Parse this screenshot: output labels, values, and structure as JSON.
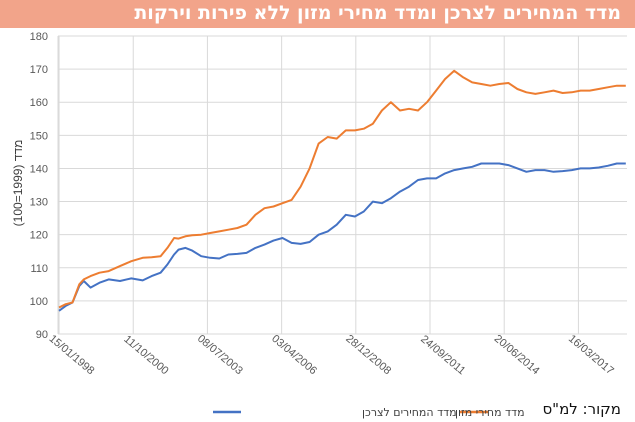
{
  "chart_data": {
    "type": "line",
    "title": "מדד המחירים לצרכן ומדד מחירי מזון ללא פירות וירקות",
    "ylabel": "מדד (1999=100)",
    "xlabel": "",
    "source": "מקור: למ\"ס",
    "ylim": [
      90,
      180
    ],
    "yticks": [
      "90",
      "100",
      "110",
      "120",
      "130",
      "140",
      "150",
      "160",
      "170",
      "180"
    ],
    "x_tick_labels": [
      "15/01/1998",
      "11/10/2000",
      "08/07/2003",
      "03/04/2006",
      "28/12/2008",
      "24/09/2011",
      "20/06/2014",
      "16/03/2017"
    ],
    "grid": true,
    "legend_position": "bottom",
    "colors": {
      "cpi": "#4472c4",
      "food": "#ed7d31"
    },
    "series": [
      {
        "name": "מדד המחירים לצרכן",
        "color": "#4472c4",
        "x": [
          "1998-01",
          "1998-04",
          "1998-07",
          "1998-10",
          "1998-12",
          "1999-03",
          "1999-07",
          "1999-11",
          "2000-04",
          "2000-09",
          "2001-02",
          "2001-06",
          "2001-10",
          "2002-01",
          "2002-04",
          "2002-06",
          "2002-09",
          "2002-12",
          "2003-04",
          "2003-08",
          "2003-12",
          "2004-04",
          "2004-08",
          "2004-12",
          "2005-04",
          "2005-08",
          "2005-12",
          "2006-04",
          "2006-08",
          "2006-12",
          "2007-04",
          "2007-08",
          "2007-12",
          "2008-04",
          "2008-08",
          "2008-12",
          "2009-04",
          "2009-08",
          "2009-12",
          "2010-04",
          "2010-08",
          "2010-12",
          "2011-04",
          "2011-08",
          "2011-12",
          "2012-04",
          "2012-08",
          "2012-12",
          "2013-04",
          "2013-08",
          "2013-12",
          "2014-04",
          "2014-08",
          "2014-12",
          "2015-04",
          "2015-08",
          "2015-12",
          "2016-04",
          "2016-08",
          "2016-12",
          "2017-04",
          "2017-08",
          "2017-12",
          "2018-04",
          "2018-08",
          "2018-12"
        ],
        "values": [
          97,
          98.5,
          99.5,
          104.5,
          106,
          104,
          105.5,
          106.5,
          106,
          106.8,
          106.2,
          107.5,
          108.5,
          111,
          114,
          115.5,
          116,
          115.2,
          113.5,
          113,
          112.8,
          114,
          114.2,
          114.5,
          116,
          117,
          118.2,
          119,
          117.5,
          117.2,
          117.8,
          120,
          121,
          123,
          126,
          125.5,
          127,
          130,
          129.5,
          131,
          133,
          134.5,
          136.5,
          137,
          137,
          138.5,
          139.5,
          140,
          140.5,
          141.5,
          141.5,
          141.5,
          141,
          140,
          139,
          139.5,
          139.5,
          139,
          139.2,
          139.5,
          140,
          140,
          140.3,
          140.8,
          141.5,
          141.5
        ]
      },
      {
        "name": "מדד מחירי מזון",
        "color": "#ed7d31",
        "x": [
          "1998-01",
          "1998-04",
          "1998-07",
          "1998-10",
          "1998-12",
          "1999-03",
          "1999-07",
          "1999-11",
          "2000-04",
          "2000-09",
          "2001-02",
          "2001-06",
          "2001-10",
          "2002-01",
          "2002-04",
          "2002-06",
          "2002-09",
          "2002-12",
          "2003-04",
          "2003-08",
          "2003-12",
          "2004-04",
          "2004-08",
          "2004-12",
          "2005-04",
          "2005-08",
          "2005-12",
          "2006-04",
          "2006-08",
          "2006-12",
          "2007-04",
          "2007-08",
          "2007-12",
          "2008-04",
          "2008-08",
          "2008-12",
          "2009-04",
          "2009-08",
          "2009-12",
          "2010-04",
          "2010-08",
          "2010-12",
          "2011-04",
          "2011-08",
          "2011-12",
          "2012-04",
          "2012-08",
          "2012-12",
          "2013-04",
          "2013-08",
          "2013-12",
          "2014-04",
          "2014-08",
          "2014-12",
          "2015-04",
          "2015-08",
          "2015-12",
          "2016-04",
          "2016-08",
          "2016-12",
          "2017-04",
          "2017-08",
          "2017-12",
          "2018-04",
          "2018-08",
          "2018-12"
        ],
        "values": [
          98,
          99,
          99.5,
          105,
          106.5,
          107.5,
          108.5,
          109,
          110.5,
          112,
          113,
          113.2,
          113.5,
          116,
          119,
          118.8,
          119.5,
          119.8,
          120,
          120.5,
          121,
          121.5,
          122,
          123,
          126,
          128,
          128.5,
          129.5,
          130.5,
          134.5,
          140,
          147.5,
          149.5,
          149,
          151.5,
          151.5,
          152,
          153.5,
          157.5,
          160,
          157.5,
          158,
          157.5,
          160,
          163.5,
          167,
          169.5,
          167.5,
          166,
          165.5,
          165,
          165.5,
          165.8,
          164,
          163,
          162.5,
          163,
          163.5,
          162.8,
          163,
          163.5,
          163.5,
          164,
          164.5,
          165,
          165
        ]
      }
    ]
  }
}
